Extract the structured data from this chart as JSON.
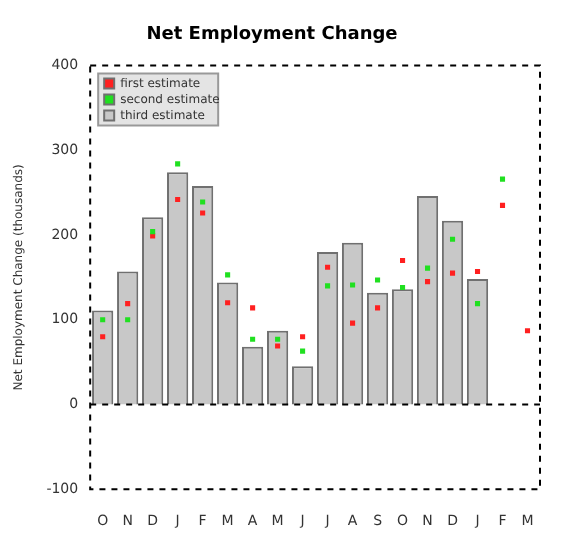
{
  "chart_data": {
    "type": "bar",
    "title": "Net Employment Change",
    "ylabel": "Net Employment Change (thousands)",
    "categories": [
      "O",
      "N",
      "D",
      "J",
      "F",
      "M",
      "A",
      "M",
      "J",
      "J",
      "A",
      "S",
      "O",
      "N",
      "D",
      "J",
      "F",
      "M"
    ],
    "series": [
      {
        "name": "first estimate",
        "type": "scatter",
        "color": "#ff2020",
        "values": [
          80,
          119,
          199,
          242,
          226,
          120,
          114,
          69,
          80,
          162,
          96,
          114,
          170,
          145,
          155,
          157,
          235,
          87
        ]
      },
      {
        "name": "second estimate",
        "type": "scatter",
        "color": "#20e020",
        "values": [
          100,
          100,
          204,
          284,
          239,
          153,
          77,
          77,
          63,
          140,
          141,
          147,
          138,
          161,
          195,
          119,
          266,
          null
        ]
      },
      {
        "name": "third estimate",
        "color": "#c8c8c8",
        "values": [
          111,
          157,
          221,
          274,
          258,
          144,
          68,
          87,
          45,
          180,
          191,
          132,
          136,
          246,
          217,
          148,
          null,
          null
        ]
      }
    ],
    "ylim": [
      -100,
      400
    ],
    "yticks": [
      -100,
      0,
      100,
      200,
      300,
      400
    ],
    "grid": false,
    "ref_lines": [
      {
        "axis": "y",
        "value": 0,
        "line_style": "dashed",
        "color": "#000000"
      }
    ],
    "legend": "top left",
    "marker": "square"
  }
}
